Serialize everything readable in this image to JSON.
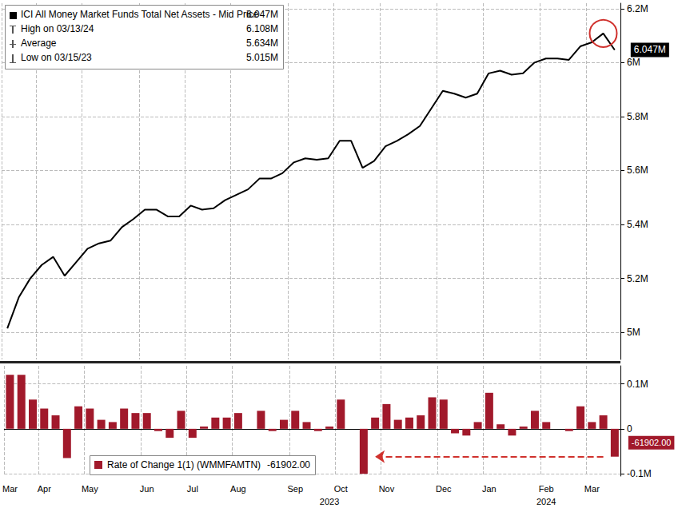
{
  "chart_data": [
    {
      "type": "line",
      "title": "ICI All Money Market Funds Total Net Assets - Mid Price",
      "last_value_label": "6.047M",
      "stats": [
        {
          "label": "High on 03/13/24",
          "value": 6.108,
          "value_label": "6.108M"
        },
        {
          "label": "Average",
          "value": 5.634,
          "value_label": "5.634M"
        },
        {
          "label": "Low on 03/15/23",
          "value": 5.015,
          "value_label": "5.015M"
        }
      ],
      "categories": [
        "Mar",
        null,
        null,
        "Apr",
        null,
        null,
        null,
        "May",
        null,
        null,
        null,
        null,
        "Jun",
        null,
        null,
        null,
        "Jul",
        null,
        null,
        null,
        "Aug",
        null,
        null,
        null,
        null,
        "Sep",
        null,
        null,
        null,
        "Oct",
        null,
        null,
        null,
        "Nov",
        null,
        null,
        null,
        null,
        "Dec",
        null,
        null,
        null,
        "Jan",
        null,
        null,
        null,
        null,
        "Feb",
        null,
        null,
        null,
        "Mar",
        null,
        null
      ],
      "values": [
        5.015,
        5.13,
        5.2,
        5.25,
        5.28,
        5.21,
        5.26,
        5.31,
        5.33,
        5.34,
        5.39,
        5.42,
        5.455,
        5.455,
        5.43,
        5.43,
        5.47,
        5.455,
        5.46,
        5.49,
        5.51,
        5.53,
        5.57,
        5.57,
        5.59,
        5.63,
        5.645,
        5.64,
        5.645,
        5.71,
        5.71,
        5.61,
        5.635,
        5.69,
        5.71,
        5.735,
        5.765,
        5.83,
        5.895,
        5.885,
        5.87,
        5.885,
        5.96,
        5.97,
        5.955,
        5.96,
        6.0,
        6.015,
        6.015,
        6.01,
        6.06,
        6.075,
        6.108,
        6.047
      ],
      "color": "#000000",
      "ylim": [
        4.9,
        6.22
      ],
      "yticks": [
        {
          "value": 5,
          "label": "5M"
        },
        {
          "value": 5.2,
          "label": "5.2M"
        },
        {
          "value": 5.4,
          "label": "5.4M"
        },
        {
          "value": 5.6,
          "label": "5.6M"
        },
        {
          "value": 5.8,
          "label": "5.8M"
        },
        {
          "value": 6,
          "label": "6M"
        },
        {
          "value": 6.2,
          "label": "6.2M"
        }
      ],
      "grid": true,
      "legend": "upper left",
      "tick_labels": "y"
    },
    {
      "type": "bar",
      "title": "Rate of Change 1(1) (WMMFAMTN)",
      "last_value_label": "-61902.00",
      "categories": [
        "Mar",
        null,
        null,
        "Apr",
        null,
        null,
        null,
        "May",
        null,
        null,
        null,
        null,
        "Jun",
        null,
        null,
        null,
        "Jul",
        null,
        null,
        null,
        "Aug",
        null,
        null,
        null,
        null,
        "Sep",
        null,
        null,
        null,
        "Oct",
        null,
        null,
        null,
        "Nov",
        null,
        null,
        null,
        null,
        "Dec",
        null,
        null,
        null,
        "Jan",
        null,
        null,
        null,
        null,
        "Feb",
        null,
        null,
        null,
        "Mar",
        null,
        null
      ],
      "year_labels": [
        null,
        null,
        null,
        null,
        null,
        null,
        null,
        null,
        null,
        null,
        null,
        null,
        null,
        null,
        null,
        null,
        null,
        null,
        null,
        null,
        null,
        null,
        null,
        null,
        null,
        null,
        null,
        null,
        "2023",
        null,
        null,
        null,
        null,
        null,
        null,
        null,
        null,
        null,
        null,
        null,
        null,
        null,
        null,
        null,
        null,
        null,
        null,
        "2024",
        null,
        null,
        null,
        null,
        null,
        null
      ],
      "values": [
        0.12,
        0.12,
        0.065,
        0.045,
        0.03,
        -0.065,
        0.05,
        0.045,
        0.02,
        0.015,
        0.045,
        0.035,
        0.035,
        -0.005,
        -0.02,
        0.04,
        -0.02,
        0.005,
        0.025,
        0.025,
        0.035,
        0.0,
        0.04,
        -0.005,
        0.02,
        0.04,
        0.015,
        -0.005,
        0.005,
        0.065,
        0.0,
        -0.1,
        0.025,
        0.055,
        0.02,
        0.025,
        0.03,
        0.07,
        0.065,
        -0.01,
        -0.015,
        0.015,
        0.08,
        0.01,
        -0.015,
        0.005,
        0.04,
        0.015,
        0.0,
        -0.005,
        0.05,
        0.015,
        0.03,
        -0.061902
      ],
      "color": "#a1192b",
      "ylim": [
        -0.105,
        0.14
      ],
      "yticks": [
        {
          "value": -0.1,
          "label": "-0.1M"
        },
        {
          "value": 0,
          "label": "0"
        },
        {
          "value": 0.1,
          "label": "0.1M"
        }
      ],
      "grid": true,
      "legend": "lower left"
    }
  ]
}
